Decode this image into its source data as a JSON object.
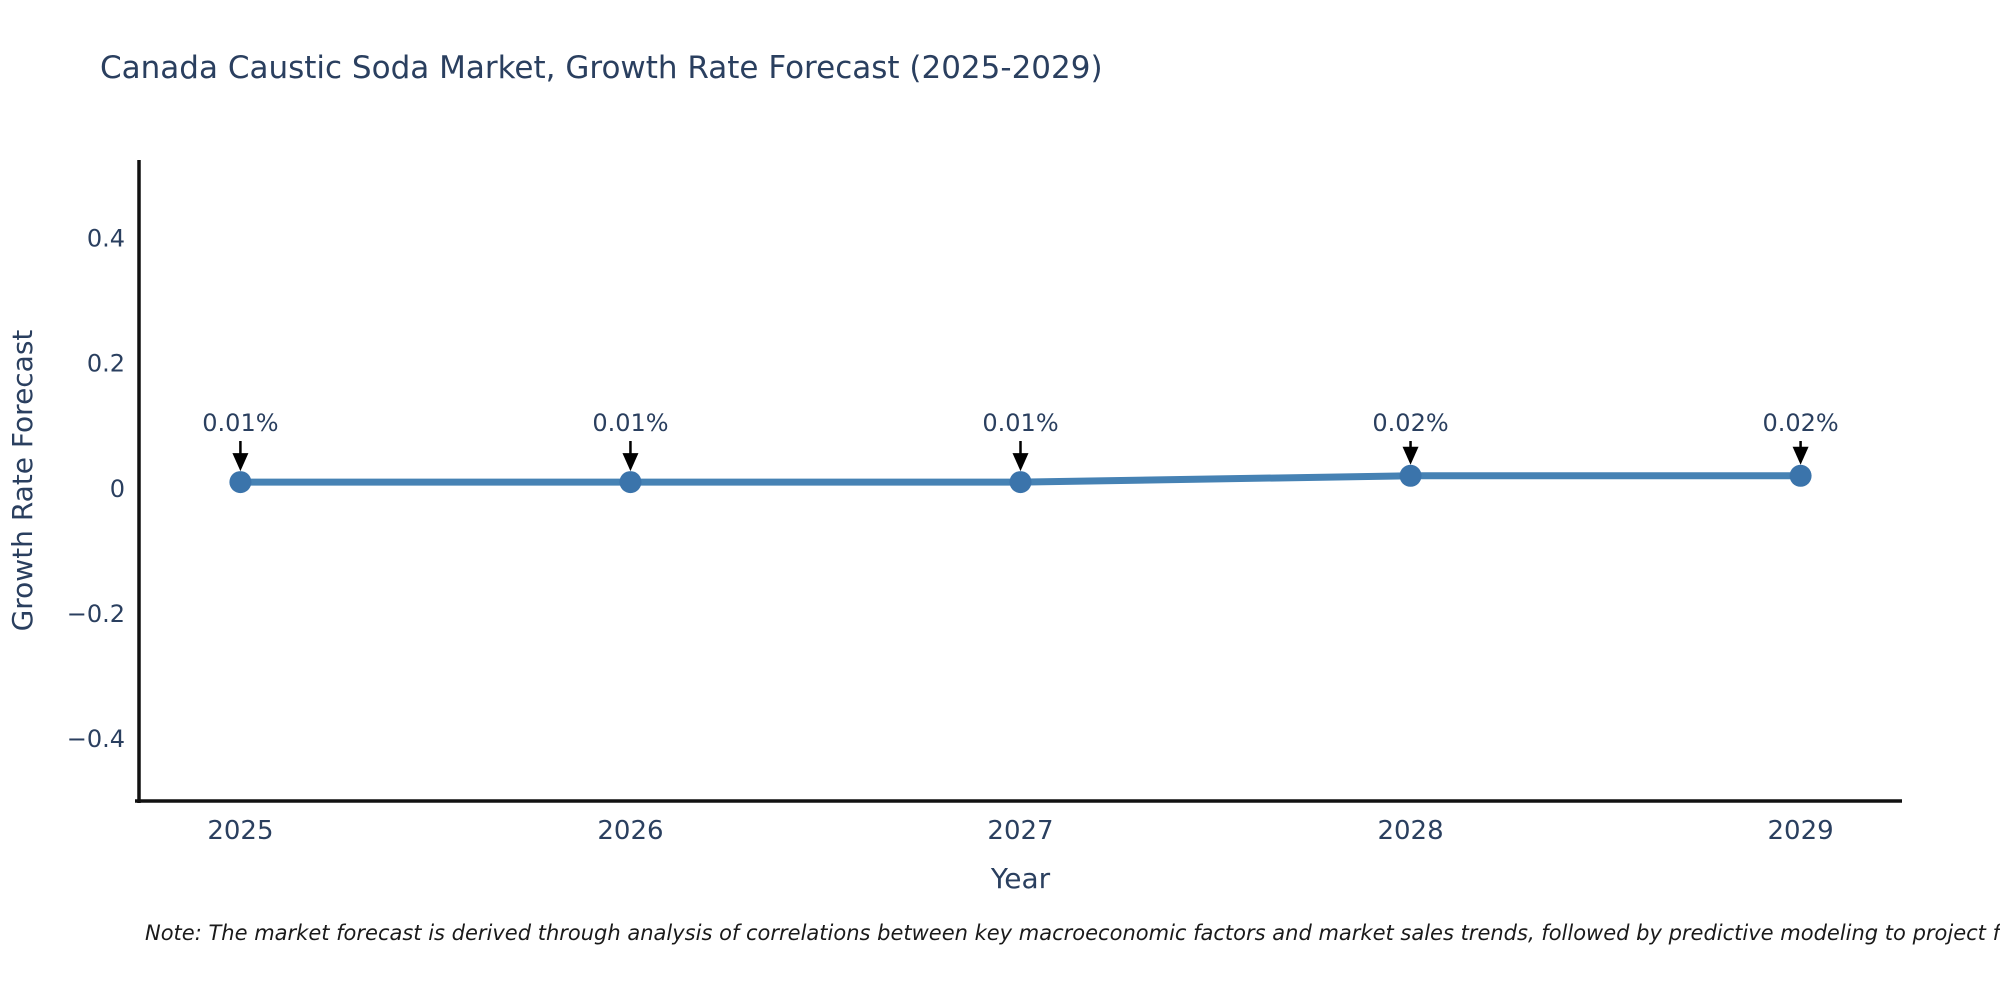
{
  "note": {
    "text": "Note: The market forecast is derived through analysis of correlations between key macroeconomic factors and market sales trends, followed by predictive modeling to project future sa"
  },
  "chart_data": {
    "type": "line",
    "title": "Canada Caustic Soda Market, Growth Rate Forecast (2025-2029)",
    "xlabel": "Year",
    "ylabel": "Growth Rate Forecast",
    "x": [
      2025,
      2026,
      2027,
      2028,
      2029
    ],
    "y": [
      0.01,
      0.01,
      0.01,
      0.02,
      0.02
    ],
    "point_labels": [
      "0.01%",
      "0.01%",
      "0.01%",
      "0.02%",
      "0.02%"
    ],
    "xtick_labels": [
      "2025",
      "2026",
      "2027",
      "2028",
      "2029"
    ],
    "yticks": [
      0.4,
      0.2,
      0,
      -0.2,
      -0.4
    ],
    "ytick_labels": [
      "0.4",
      "0.2",
      "0",
      "−0.2",
      "−0.4"
    ],
    "xlim": [
      2024.74,
      2029.26
    ],
    "ylim": [
      -0.5,
      0.525
    ],
    "grid": false,
    "legend": false,
    "colors": {
      "line": "#4682b4",
      "marker": "#3b74ab",
      "axis": "#111111",
      "text": "#2a3f5f",
      "annotation_arrow": "#000000"
    }
  }
}
